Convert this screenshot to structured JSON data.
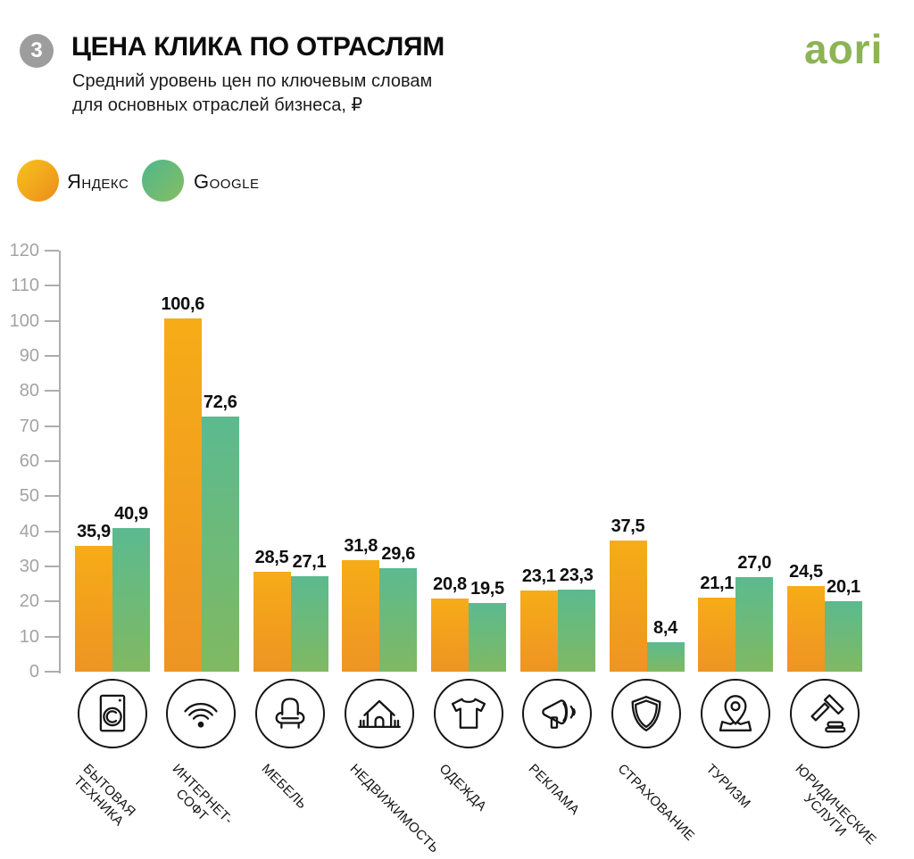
{
  "page": {
    "badge_number": "3",
    "title": "ЦЕНА КЛИКА ПО ОТРАСЛЯМ",
    "subtitle_line1": "Средний уровень цен по ключевым словам",
    "subtitle_line2": "для основных отраслей бизнеса, ₽",
    "logo_text": "aori"
  },
  "colors": {
    "yandex_top": "#f6ac17",
    "yandex_bottom": "#ee9424",
    "google_top": "#5bba8f",
    "google_bottom": "#80b962",
    "axis": "#adadad",
    "axis_label": "#a3a3a3",
    "logo_green": "#8cb455",
    "badge_gray": "#9d9d9d"
  },
  "chart_data": {
    "type": "bar",
    "title": "ЦЕНА КЛИКА ПО ОТРАСЛЯМ",
    "subtitle": "Средний уровень цен по ключевым словам для основных отраслей бизнеса, ₽",
    "unit": "₽",
    "categories": [
      "БЫТОВАЯ\nТЕХНИКА",
      "ИНТЕРНЕТ-\nСОФТ",
      "МЕБЕЛЬ",
      "НЕДВИЖИМОСТЬ",
      "ОДЕЖДА",
      "РЕКЛАМА",
      "СТРАХОВАНИЕ",
      "ТУРИЗМ",
      "ЮРИДИЧЕСКИЕ\nУСЛУГИ"
    ],
    "icons": [
      "washing-machine-icon",
      "wifi-icon",
      "armchair-icon",
      "house-icon",
      "tshirt-icon",
      "megaphone-icon",
      "shield-icon",
      "map-pin-icon",
      "gavel-icon"
    ],
    "series": [
      {
        "name": "Яндекс",
        "values": [
          35.9,
          100.6,
          28.5,
          31.8,
          20.8,
          23.1,
          37.5,
          21.1,
          24.5
        ]
      },
      {
        "name": "Google",
        "values": [
          40.9,
          72.6,
          27.1,
          29.6,
          19.5,
          23.3,
          8.4,
          27.0,
          20.1
        ]
      }
    ],
    "value_labels": [
      [
        "35,9",
        "100,6",
        "28,5",
        "31,8",
        "20,8",
        "23,1",
        "37,5",
        "21,1",
        "24,5"
      ],
      [
        "40,9",
        "72,6",
        "27,1",
        "29,6",
        "19,5",
        "23,3",
        "8,4",
        "27,0",
        "20,1"
      ]
    ],
    "ylim": [
      0,
      120
    ],
    "ytick_step": 10,
    "grid": false,
    "legend_position": "top-left",
    "decimal_separator": ","
  }
}
